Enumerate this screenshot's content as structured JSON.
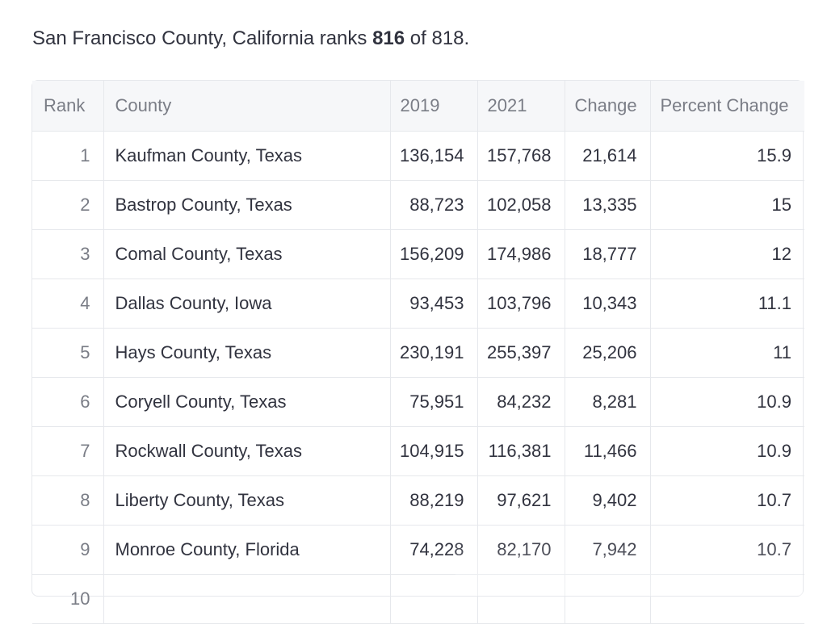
{
  "summary": {
    "prefix": "San Francisco County, California ranks ",
    "rank": "816",
    "middle": " of ",
    "total": "818",
    "suffix": "."
  },
  "table": {
    "headers": {
      "rank": "Rank",
      "county": "County",
      "y2019": "2019",
      "y2021": "2021",
      "change": "Change",
      "pct": "Percent Change"
    },
    "rows": [
      {
        "rank": "1",
        "county": "Kaufman County, Texas",
        "y2019": "136,154",
        "y2021": "157,768",
        "change": "21,614",
        "pct": "15.9"
      },
      {
        "rank": "2",
        "county": "Bastrop County, Texas",
        "y2019": "88,723",
        "y2021": "102,058",
        "change": "13,335",
        "pct": "15"
      },
      {
        "rank": "3",
        "county": "Comal County, Texas",
        "y2019": "156,209",
        "y2021": "174,986",
        "change": "18,777",
        "pct": "12"
      },
      {
        "rank": "4",
        "county": "Dallas County, Iowa",
        "y2019": "93,453",
        "y2021": "103,796",
        "change": "10,343",
        "pct": "11.1"
      },
      {
        "rank": "5",
        "county": "Hays County, Texas",
        "y2019": "230,191",
        "y2021": "255,397",
        "change": "25,206",
        "pct": "11"
      },
      {
        "rank": "6",
        "county": "Coryell County, Texas",
        "y2019": "75,951",
        "y2021": "84,232",
        "change": "8,281",
        "pct": "10.9"
      },
      {
        "rank": "7",
        "county": "Rockwall County, Texas",
        "y2019": "104,915",
        "y2021": "116,381",
        "change": "11,466",
        "pct": "10.9"
      },
      {
        "rank": "8",
        "county": "Liberty County, Texas",
        "y2019": "88,219",
        "y2021": "97,621",
        "change": "9,402",
        "pct": "10.7"
      },
      {
        "rank": "9",
        "county": "Monroe County, Florida",
        "y2019": "74,228",
        "y2021": "82,170",
        "change": "7,942",
        "pct": "10.7"
      },
      {
        "rank": "10",
        "county": "",
        "y2019": "",
        "y2021": "",
        "change": "",
        "pct": ""
      }
    ]
  }
}
